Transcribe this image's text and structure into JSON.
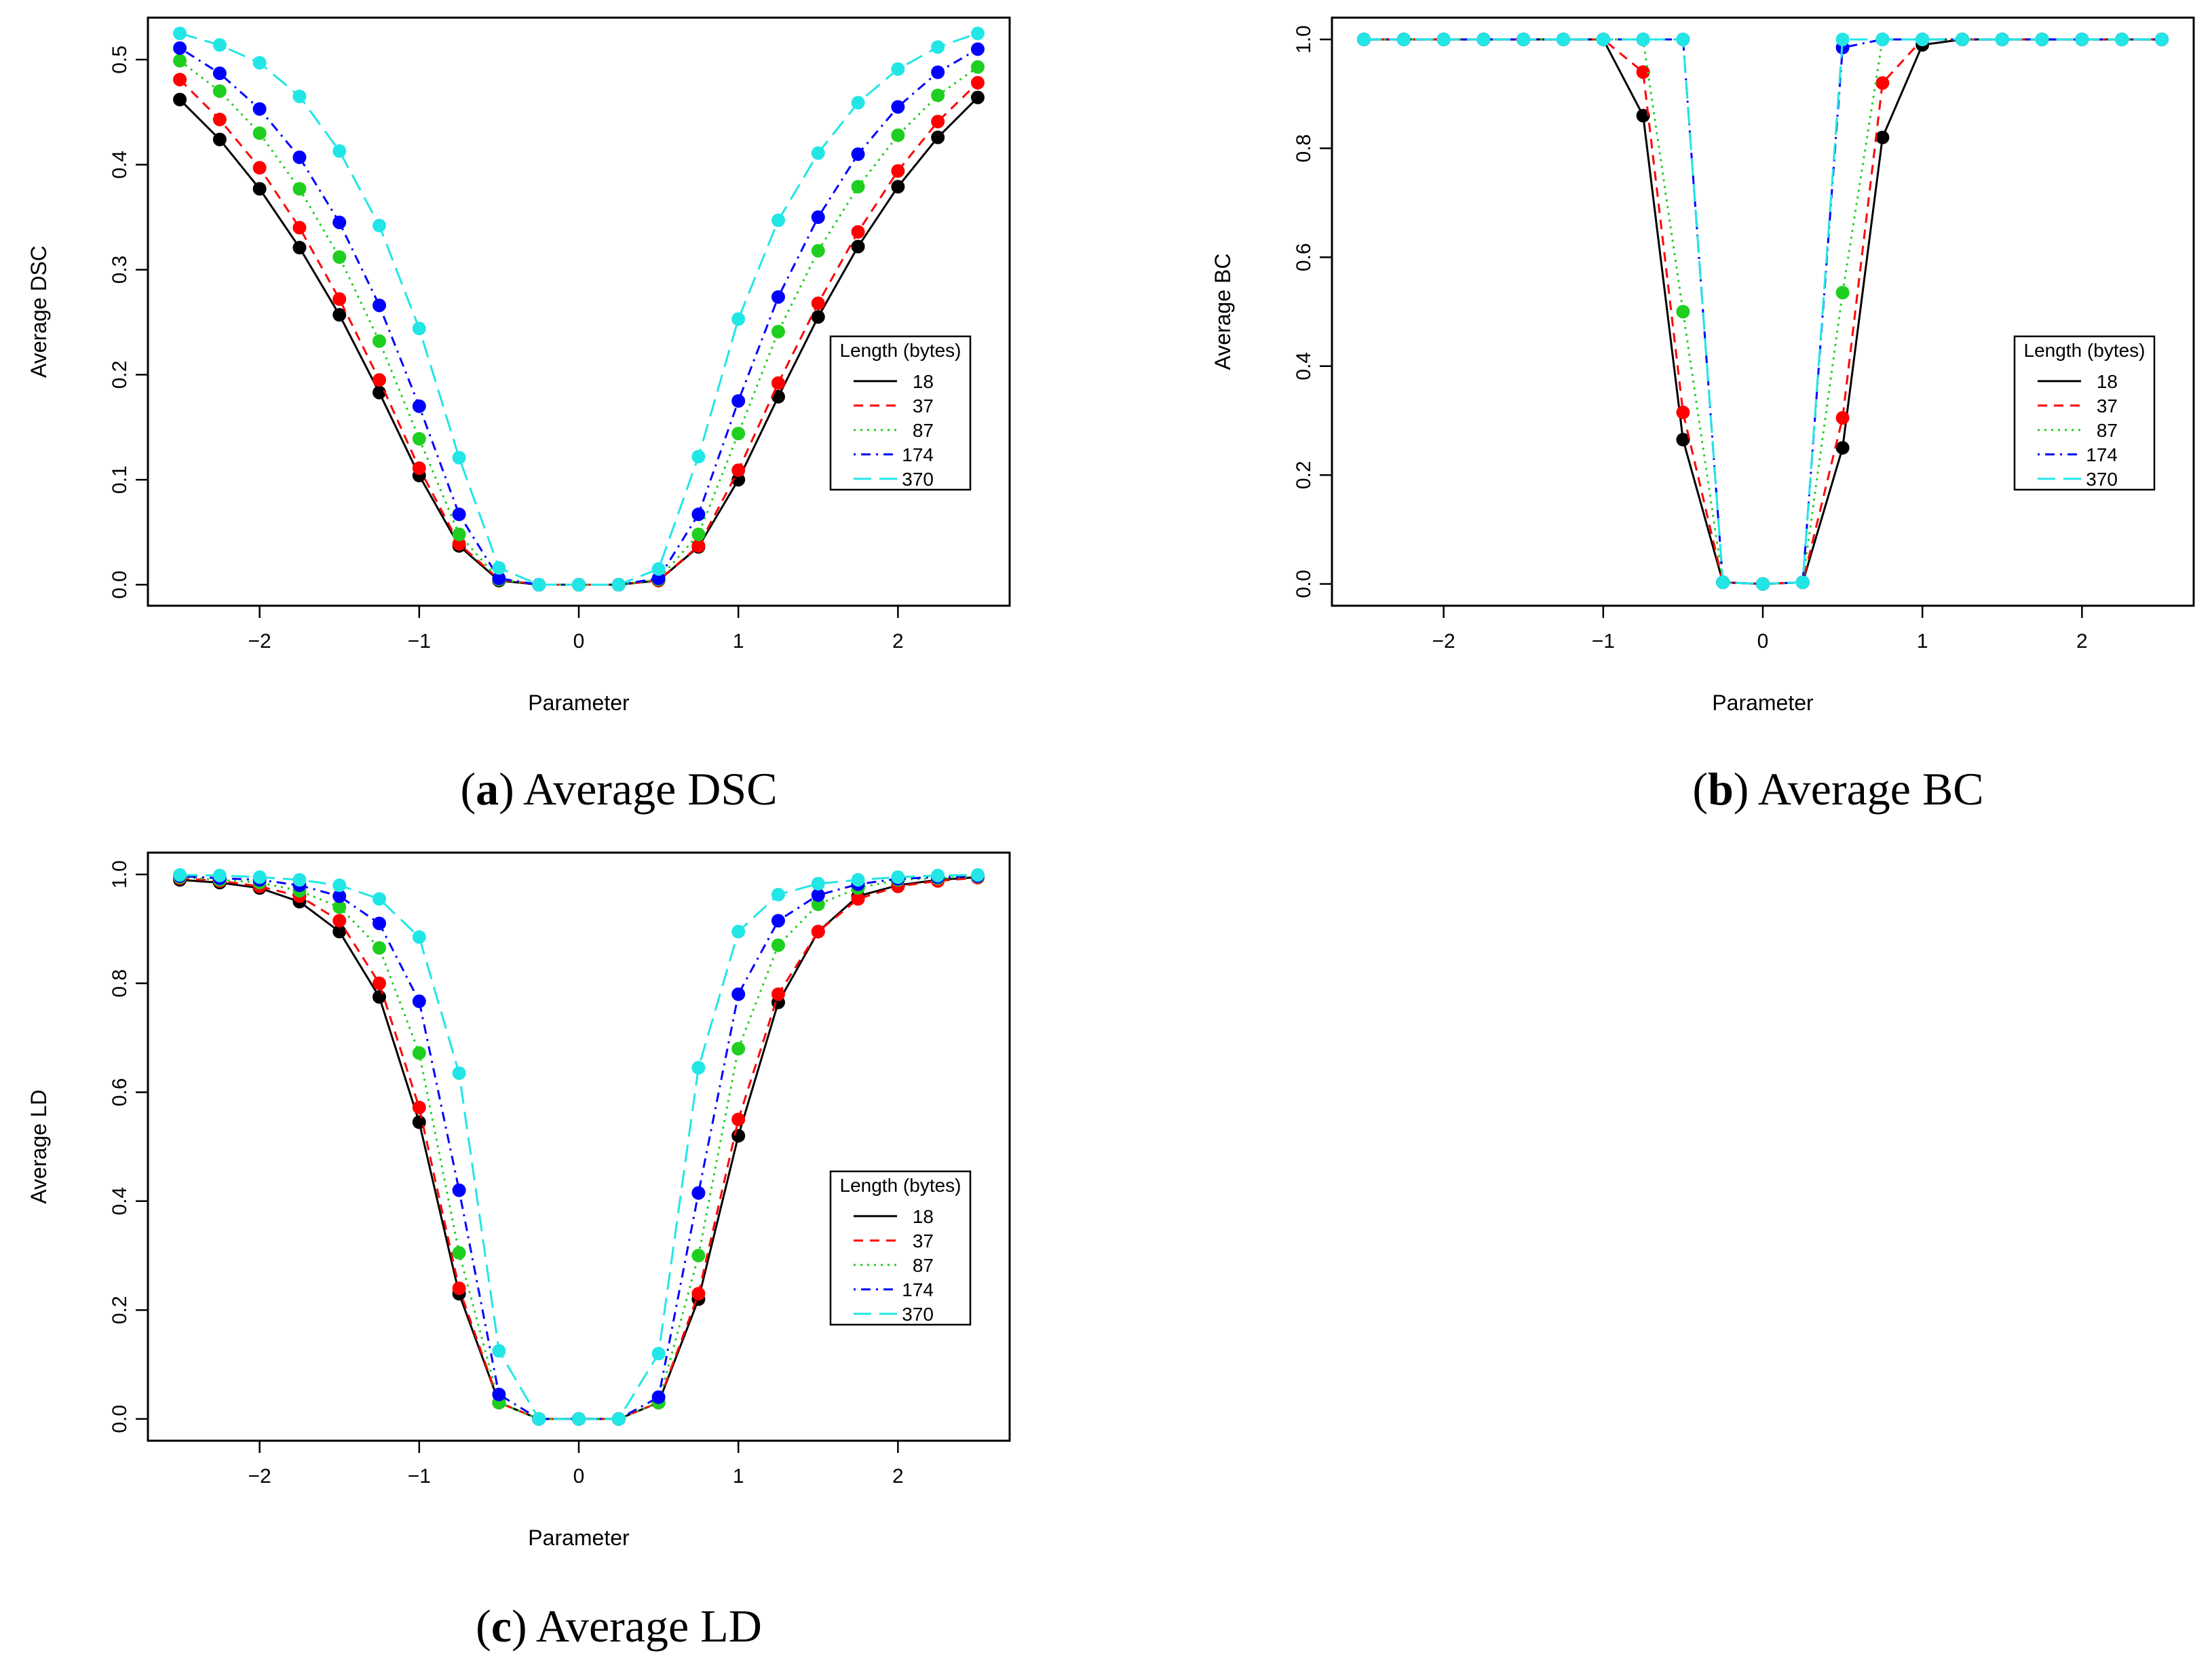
{
  "chart_data": [
    {
      "id": "a",
      "type": "line",
      "caption_letter": "a",
      "caption_text": "Average DSC",
      "title": "",
      "xlabel": "Parameter",
      "ylabel": "Average DSC",
      "xlim": [
        -2.7,
        2.7
      ],
      "ylim": [
        -0.02,
        0.54
      ],
      "xticks": [
        -2,
        -1,
        0,
        1,
        2
      ],
      "xtick_labels": [
        "−2",
        "−1",
        "0",
        "1",
        "2"
      ],
      "yticks": [
        0.0,
        0.1,
        0.2,
        0.3,
        0.4,
        0.5
      ],
      "ytick_labels": [
        "0.0",
        "0.1",
        "0.2",
        "0.3",
        "0.4",
        "0.5"
      ],
      "legend": {
        "title": "Length (bytes)",
        "position": "right"
      },
      "x": [
        -2.5,
        -2.25,
        -2.0,
        -1.75,
        -1.5,
        -1.25,
        -1.0,
        -0.75,
        -0.5,
        -0.25,
        0.0,
        0.25,
        0.5,
        0.75,
        1.0,
        1.25,
        1.5,
        1.75,
        2.0,
        2.25,
        2.5
      ],
      "series": [
        {
          "name": "18",
          "color": "#000000",
          "dash": "solid",
          "values": [
            0.462,
            0.424,
            0.377,
            0.321,
            0.257,
            0.183,
            0.104,
            0.037,
            0.004,
            0.0,
            0.0,
            0.0,
            0.004,
            0.036,
            0.1,
            0.179,
            0.255,
            0.322,
            0.379,
            0.426,
            0.464
          ]
        },
        {
          "name": "37",
          "color": "#ff0000",
          "dash": "dashed",
          "values": [
            0.481,
            0.443,
            0.397,
            0.34,
            0.272,
            0.195,
            0.111,
            0.039,
            0.005,
            0.0,
            0.0,
            0.0,
            0.004,
            0.037,
            0.109,
            0.192,
            0.268,
            0.336,
            0.394,
            0.441,
            0.478
          ]
        },
        {
          "name": "87",
          "color": "#1fcf1f",
          "dash": "dotted",
          "values": [
            0.499,
            0.47,
            0.43,
            0.377,
            0.312,
            0.232,
            0.139,
            0.048,
            0.005,
            0.0,
            0.0,
            0.0,
            0.005,
            0.048,
            0.144,
            0.241,
            0.318,
            0.379,
            0.428,
            0.466,
            0.493
          ]
        },
        {
          "name": "174",
          "color": "#0000ff",
          "dash": "dotdash",
          "values": [
            0.511,
            0.487,
            0.453,
            0.407,
            0.345,
            0.266,
            0.17,
            0.067,
            0.006,
            0.0,
            0.0,
            0.0,
            0.006,
            0.067,
            0.175,
            0.274,
            0.35,
            0.41,
            0.455,
            0.488,
            0.51
          ]
        },
        {
          "name": "370",
          "color": "#22e6e6",
          "dash": "longdash",
          "values": [
            0.525,
            0.514,
            0.497,
            0.465,
            0.413,
            0.342,
            0.244,
            0.121,
            0.016,
            0.0,
            0.0,
            0.0,
            0.015,
            0.122,
            0.253,
            0.347,
            0.411,
            0.459,
            0.491,
            0.512,
            0.525
          ]
        }
      ]
    },
    {
      "id": "b",
      "type": "line",
      "caption_letter": "b",
      "caption_text": "Average BC",
      "title": "",
      "xlabel": "Parameter",
      "ylabel": "Average BC",
      "xlim": [
        -2.7,
        2.7
      ],
      "ylim": [
        -0.04,
        1.04
      ],
      "xticks": [
        -2,
        -1,
        0,
        1,
        2
      ],
      "xtick_labels": [
        "−2",
        "−1",
        "0",
        "1",
        "2"
      ],
      "yticks": [
        0.0,
        0.2,
        0.4,
        0.6,
        0.8,
        1.0
      ],
      "ytick_labels": [
        "0.0",
        "0.2",
        "0.4",
        "0.6",
        "0.8",
        "1.0"
      ],
      "legend": {
        "title": "Length (bytes)",
        "position": "right"
      },
      "x": [
        -2.5,
        -2.25,
        -2.0,
        -1.75,
        -1.5,
        -1.25,
        -1.0,
        -0.75,
        -0.5,
        -0.25,
        0.0,
        0.25,
        0.5,
        0.75,
        1.0,
        1.25,
        1.5,
        1.75,
        2.0,
        2.25,
        2.5
      ],
      "series": [
        {
          "name": "18",
          "color": "#000000",
          "dash": "solid",
          "values": [
            1.0,
            1.0,
            1.0,
            1.0,
            1.0,
            1.0,
            1.0,
            0.86,
            0.265,
            0.003,
            0.0,
            0.003,
            0.25,
            0.82,
            0.99,
            1.0,
            1.0,
            1.0,
            1.0,
            1.0,
            1.0
          ]
        },
        {
          "name": "37",
          "color": "#ff0000",
          "dash": "dashed",
          "values": [
            1.0,
            1.0,
            1.0,
            1.0,
            1.0,
            1.0,
            1.0,
            0.94,
            0.315,
            0.003,
            0.0,
            0.003,
            0.305,
            0.92,
            1.0,
            1.0,
            1.0,
            1.0,
            1.0,
            1.0,
            1.0
          ]
        },
        {
          "name": "87",
          "color": "#1fcf1f",
          "dash": "dotted",
          "values": [
            1.0,
            1.0,
            1.0,
            1.0,
            1.0,
            1.0,
            1.0,
            1.0,
            0.5,
            0.003,
            0.0,
            0.003,
            0.535,
            1.0,
            1.0,
            1.0,
            1.0,
            1.0,
            1.0,
            1.0,
            1.0
          ]
        },
        {
          "name": "174",
          "color": "#0000ff",
          "dash": "dotdash",
          "values": [
            1.0,
            1.0,
            1.0,
            1.0,
            1.0,
            1.0,
            1.0,
            1.0,
            1.0,
            0.003,
            0.0,
            0.003,
            0.985,
            1.0,
            1.0,
            1.0,
            1.0,
            1.0,
            1.0,
            1.0,
            1.0
          ]
        },
        {
          "name": "370",
          "color": "#22e6e6",
          "dash": "longdash",
          "values": [
            1.0,
            1.0,
            1.0,
            1.0,
            1.0,
            1.0,
            1.0,
            1.0,
            1.0,
            0.003,
            0.0,
            0.003,
            1.0,
            1.0,
            1.0,
            1.0,
            1.0,
            1.0,
            1.0,
            1.0,
            1.0
          ]
        }
      ]
    },
    {
      "id": "c",
      "type": "line",
      "caption_letter": "c",
      "caption_text": "Average LD",
      "title": "",
      "xlabel": "Parameter",
      "ylabel": "Average LD",
      "xlim": [
        -2.7,
        2.7
      ],
      "ylim": [
        -0.04,
        1.04
      ],
      "xticks": [
        -2,
        -1,
        0,
        1,
        2
      ],
      "xtick_labels": [
        "−2",
        "−1",
        "0",
        "1",
        "2"
      ],
      "yticks": [
        0.0,
        0.2,
        0.4,
        0.6,
        0.8,
        1.0
      ],
      "ytick_labels": [
        "0.0",
        "0.2",
        "0.4",
        "0.6",
        "0.8",
        "1.0"
      ],
      "legend": {
        "title": "Length (bytes)",
        "position": "right"
      },
      "x": [
        -2.5,
        -2.25,
        -2.0,
        -1.75,
        -1.5,
        -1.25,
        -1.0,
        -0.75,
        -0.5,
        -0.25,
        0.0,
        0.25,
        0.5,
        0.75,
        1.0,
        1.25,
        1.5,
        1.75,
        2.0,
        2.25,
        2.5
      ],
      "series": [
        {
          "name": "18",
          "color": "#000000",
          "dash": "solid",
          "values": [
            0.99,
            0.985,
            0.975,
            0.95,
            0.895,
            0.775,
            0.545,
            0.23,
            0.03,
            0.0,
            0.0,
            0.0,
            0.03,
            0.22,
            0.52,
            0.765,
            0.895,
            0.96,
            0.98,
            0.99,
            0.995
          ]
        },
        {
          "name": "37",
          "color": "#ff0000",
          "dash": "dashed",
          "values": [
            0.993,
            0.988,
            0.978,
            0.96,
            0.915,
            0.8,
            0.572,
            0.24,
            0.03,
            0.0,
            0.0,
            0.0,
            0.03,
            0.23,
            0.55,
            0.78,
            0.895,
            0.955,
            0.978,
            0.988,
            0.994
          ]
        },
        {
          "name": "87",
          "color": "#1fcf1f",
          "dash": "dotted",
          "values": [
            0.995,
            0.99,
            0.985,
            0.97,
            0.94,
            0.865,
            0.672,
            0.305,
            0.03,
            0.0,
            0.0,
            0.0,
            0.03,
            0.3,
            0.68,
            0.87,
            0.945,
            0.975,
            0.99,
            0.993,
            0.996
          ]
        },
        {
          "name": "174",
          "color": "#0000ff",
          "dash": "dotdash",
          "values": [
            0.997,
            0.993,
            0.99,
            0.98,
            0.96,
            0.91,
            0.767,
            0.42,
            0.045,
            0.0,
            0.0,
            0.0,
            0.04,
            0.415,
            0.78,
            0.915,
            0.962,
            0.982,
            0.992,
            0.995,
            0.997
          ]
        },
        {
          "name": "370",
          "color": "#22e6e6",
          "dash": "longdash",
          "values": [
            0.999,
            0.998,
            0.995,
            0.99,
            0.98,
            0.955,
            0.885,
            0.635,
            0.125,
            0.0,
            0.0,
            0.0,
            0.12,
            0.645,
            0.895,
            0.963,
            0.983,
            0.99,
            0.995,
            0.998,
            0.999
          ]
        }
      ]
    }
  ]
}
